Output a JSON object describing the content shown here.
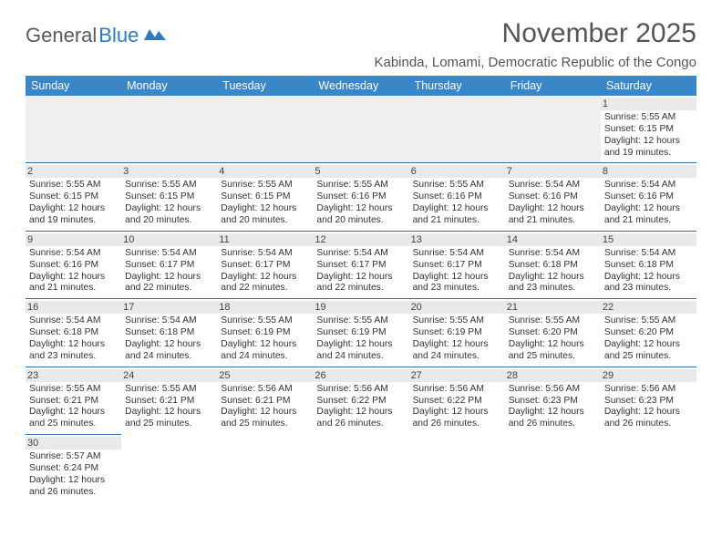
{
  "brand": {
    "part1": "General",
    "part2": "Blue"
  },
  "title": "November 2025",
  "location": "Kabinda, Lomami, Democratic Republic of the Congo",
  "colors": {
    "header_bg": "#3a87c8",
    "rule": "#2f6fa8",
    "shade": "#e9e9e9"
  },
  "weekdays": [
    "Sunday",
    "Monday",
    "Tuesday",
    "Wednesday",
    "Thursday",
    "Friday",
    "Saturday"
  ],
  "grid": [
    [
      null,
      null,
      null,
      null,
      null,
      null,
      {
        "n": "1",
        "sr": "5:55 AM",
        "ss": "6:15 PM",
        "dl": "12 hours and 19 minutes."
      }
    ],
    [
      {
        "n": "2",
        "sr": "5:55 AM",
        "ss": "6:15 PM",
        "dl": "12 hours and 19 minutes."
      },
      {
        "n": "3",
        "sr": "5:55 AM",
        "ss": "6:15 PM",
        "dl": "12 hours and 20 minutes."
      },
      {
        "n": "4",
        "sr": "5:55 AM",
        "ss": "6:15 PM",
        "dl": "12 hours and 20 minutes."
      },
      {
        "n": "5",
        "sr": "5:55 AM",
        "ss": "6:16 PM",
        "dl": "12 hours and 20 minutes."
      },
      {
        "n": "6",
        "sr": "5:55 AM",
        "ss": "6:16 PM",
        "dl": "12 hours and 21 minutes."
      },
      {
        "n": "7",
        "sr": "5:54 AM",
        "ss": "6:16 PM",
        "dl": "12 hours and 21 minutes."
      },
      {
        "n": "8",
        "sr": "5:54 AM",
        "ss": "6:16 PM",
        "dl": "12 hours and 21 minutes."
      }
    ],
    [
      {
        "n": "9",
        "sr": "5:54 AM",
        "ss": "6:16 PM",
        "dl": "12 hours and 21 minutes."
      },
      {
        "n": "10",
        "sr": "5:54 AM",
        "ss": "6:17 PM",
        "dl": "12 hours and 22 minutes."
      },
      {
        "n": "11",
        "sr": "5:54 AM",
        "ss": "6:17 PM",
        "dl": "12 hours and 22 minutes."
      },
      {
        "n": "12",
        "sr": "5:54 AM",
        "ss": "6:17 PM",
        "dl": "12 hours and 22 minutes."
      },
      {
        "n": "13",
        "sr": "5:54 AM",
        "ss": "6:17 PM",
        "dl": "12 hours and 23 minutes."
      },
      {
        "n": "14",
        "sr": "5:54 AM",
        "ss": "6:18 PM",
        "dl": "12 hours and 23 minutes."
      },
      {
        "n": "15",
        "sr": "5:54 AM",
        "ss": "6:18 PM",
        "dl": "12 hours and 23 minutes."
      }
    ],
    [
      {
        "n": "16",
        "sr": "5:54 AM",
        "ss": "6:18 PM",
        "dl": "12 hours and 23 minutes."
      },
      {
        "n": "17",
        "sr": "5:54 AM",
        "ss": "6:18 PM",
        "dl": "12 hours and 24 minutes."
      },
      {
        "n": "18",
        "sr": "5:55 AM",
        "ss": "6:19 PM",
        "dl": "12 hours and 24 minutes."
      },
      {
        "n": "19",
        "sr": "5:55 AM",
        "ss": "6:19 PM",
        "dl": "12 hours and 24 minutes."
      },
      {
        "n": "20",
        "sr": "5:55 AM",
        "ss": "6:19 PM",
        "dl": "12 hours and 24 minutes."
      },
      {
        "n": "21",
        "sr": "5:55 AM",
        "ss": "6:20 PM",
        "dl": "12 hours and 25 minutes."
      },
      {
        "n": "22",
        "sr": "5:55 AM",
        "ss": "6:20 PM",
        "dl": "12 hours and 25 minutes."
      }
    ],
    [
      {
        "n": "23",
        "sr": "5:55 AM",
        "ss": "6:21 PM",
        "dl": "12 hours and 25 minutes."
      },
      {
        "n": "24",
        "sr": "5:55 AM",
        "ss": "6:21 PM",
        "dl": "12 hours and 25 minutes."
      },
      {
        "n": "25",
        "sr": "5:56 AM",
        "ss": "6:21 PM",
        "dl": "12 hours and 25 minutes."
      },
      {
        "n": "26",
        "sr": "5:56 AM",
        "ss": "6:22 PM",
        "dl": "12 hours and 26 minutes."
      },
      {
        "n": "27",
        "sr": "5:56 AM",
        "ss": "6:22 PM",
        "dl": "12 hours and 26 minutes."
      },
      {
        "n": "28",
        "sr": "5:56 AM",
        "ss": "6:23 PM",
        "dl": "12 hours and 26 minutes."
      },
      {
        "n": "29",
        "sr": "5:56 AM",
        "ss": "6:23 PM",
        "dl": "12 hours and 26 minutes."
      }
    ],
    [
      {
        "n": "30",
        "sr": "5:57 AM",
        "ss": "6:24 PM",
        "dl": "12 hours and 26 minutes."
      },
      null,
      null,
      null,
      null,
      null,
      null
    ]
  ],
  "labels": {
    "sunrise": "Sunrise: ",
    "sunset": "Sunset: ",
    "daylight": "Daylight: "
  }
}
